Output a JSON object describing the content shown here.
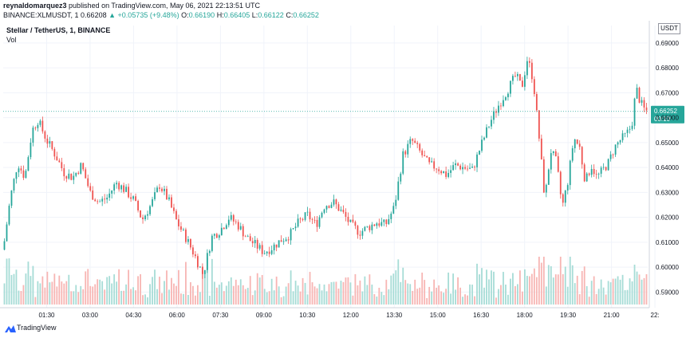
{
  "header": {
    "author": "reynaldomarquez3",
    "published": "published on TradingView.com, May 06, 2021 22:13:51 UTC",
    "symbol": "BINANCE:XLMUSDT, 1",
    "last": "0.66208",
    "change_arrow": "▲",
    "change": "+0.05735 (+9.48%)",
    "o_label": "O:",
    "o_value": "0.66190",
    "h_label": "H:",
    "h_value": "0.66405",
    "l_label": "L:",
    "l_value": "0.66122",
    "c_label": "C:",
    "c_value": "0.66252"
  },
  "legend": {
    "title": "Stellar / TetherUS, 1, BINANCE",
    "vol_label": "Vol"
  },
  "currency_label": "USDT",
  "footer": {
    "brand": "TradingView"
  },
  "colors": {
    "up": "#26a69a",
    "down": "#ef5350",
    "vol_up": "#a6dcd6",
    "vol_down": "#f7b5b3",
    "price_tag": "#26a69a",
    "grid": "#f0f3fa"
  },
  "chart_data": {
    "type": "candlestick",
    "title": "Stellar / TetherUS, 1, BINANCE",
    "ylim": [
      0.585,
      0.697
    ],
    "y_ticks": [
      "0.69000",
      "0.68000",
      "0.67000",
      "0.66000",
      "0.65000",
      "0.64000",
      "0.63000",
      "0.62000",
      "0.61000",
      "0.60000",
      "0.59000"
    ],
    "x_ticks": [
      "01:30",
      "03:00",
      "04:30",
      "06:00",
      "07:30",
      "09:00",
      "10:30",
      "12:00",
      "13:30",
      "15:00",
      "16:30",
      "18:00",
      "19:30",
      "21:00",
      "22:"
    ],
    "x_tick_hours": [
      1.5,
      3,
      4.5,
      6,
      7.5,
      9,
      10.5,
      12,
      13.5,
      15,
      16.5,
      18,
      19.5,
      21,
      22.5
    ],
    "x_range_hours": [
      0.0,
      22.25
    ],
    "current_price": "0.66252",
    "countdown": "00:10",
    "grid": true,
    "close_path": [
      [
        0.0,
        0.607
      ],
      [
        0.25,
        0.628
      ],
      [
        0.5,
        0.642
      ],
      [
        0.75,
        0.636
      ],
      [
        1.0,
        0.655
      ],
      [
        1.2,
        0.659
      ],
      [
        1.5,
        0.651
      ],
      [
        1.8,
        0.645
      ],
      [
        2.1,
        0.638
      ],
      [
        2.4,
        0.636
      ],
      [
        2.7,
        0.641
      ],
      [
        3.0,
        0.63
      ],
      [
        3.3,
        0.626
      ],
      [
        3.6,
        0.628
      ],
      [
        3.9,
        0.634
      ],
      [
        4.2,
        0.631
      ],
      [
        4.5,
        0.627
      ],
      [
        4.8,
        0.619
      ],
      [
        5.1,
        0.625
      ],
      [
        5.4,
        0.633
      ],
      [
        5.7,
        0.627
      ],
      [
        6.0,
        0.618
      ],
      [
        6.3,
        0.612
      ],
      [
        6.6,
        0.605
      ],
      [
        6.9,
        0.597
      ],
      [
        7.2,
        0.612
      ],
      [
        7.5,
        0.615
      ],
      [
        7.8,
        0.62
      ],
      [
        8.1,
        0.617
      ],
      [
        8.4,
        0.612
      ],
      [
        8.7,
        0.609
      ],
      [
        9.0,
        0.606
      ],
      [
        9.3,
        0.608
      ],
      [
        9.6,
        0.611
      ],
      [
        9.9,
        0.613
      ],
      [
        10.2,
        0.618
      ],
      [
        10.5,
        0.621
      ],
      [
        10.8,
        0.617
      ],
      [
        11.1,
        0.625
      ],
      [
        11.4,
        0.626
      ],
      [
        11.7,
        0.622
      ],
      [
        12.0,
        0.617
      ],
      [
        12.3,
        0.614
      ],
      [
        12.6,
        0.616
      ],
      [
        12.9,
        0.618
      ],
      [
        13.2,
        0.617
      ],
      [
        13.5,
        0.624
      ],
      [
        13.8,
        0.645
      ],
      [
        14.1,
        0.651
      ],
      [
        14.4,
        0.646
      ],
      [
        14.7,
        0.641
      ],
      [
        15.0,
        0.64
      ],
      [
        15.3,
        0.637
      ],
      [
        15.6,
        0.641
      ],
      [
        15.9,
        0.64
      ],
      [
        16.2,
        0.639
      ],
      [
        16.5,
        0.649
      ],
      [
        16.8,
        0.658
      ],
      [
        17.1,
        0.665
      ],
      [
        17.4,
        0.671
      ],
      [
        17.7,
        0.677
      ],
      [
        17.9,
        0.672
      ],
      [
        18.1,
        0.684
      ],
      [
        18.3,
        0.675
      ],
      [
        18.5,
        0.652
      ],
      [
        18.7,
        0.627
      ],
      [
        18.9,
        0.647
      ],
      [
        19.1,
        0.642
      ],
      [
        19.3,
        0.624
      ],
      [
        19.5,
        0.635
      ],
      [
        19.7,
        0.652
      ],
      [
        19.9,
        0.648
      ],
      [
        20.1,
        0.634
      ],
      [
        20.3,
        0.641
      ],
      [
        20.5,
        0.636
      ],
      [
        20.7,
        0.639
      ],
      [
        20.9,
        0.642
      ],
      [
        21.1,
        0.648
      ],
      [
        21.3,
        0.651
      ],
      [
        21.5,
        0.653
      ],
      [
        21.7,
        0.657
      ],
      [
        21.85,
        0.672
      ],
      [
        22.0,
        0.666
      ],
      [
        22.15,
        0.663
      ],
      [
        22.25,
        0.6625
      ]
    ]
  }
}
